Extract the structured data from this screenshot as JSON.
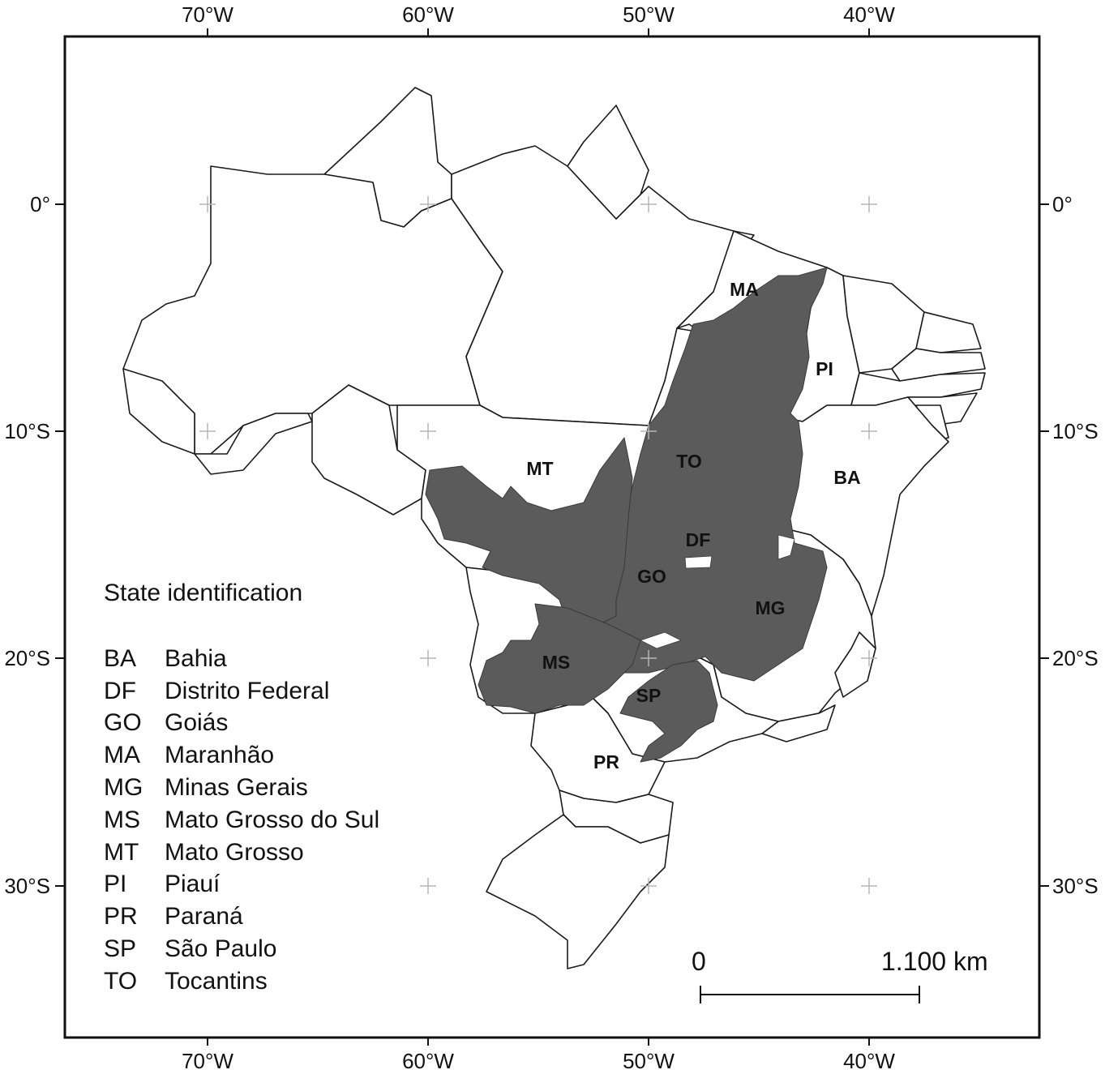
{
  "map": {
    "longitude_labels": [
      "70°W",
      "60°W",
      "50°W",
      "40°W"
    ],
    "latitude_labels": [
      "0°",
      "10°S",
      "20°S",
      "30°S"
    ],
    "state_codes": {
      "ma": "MA",
      "pi": "PI",
      "mt": "MT",
      "to": "TO",
      "ba": "BA",
      "df": "DF",
      "go": "GO",
      "mg": "MG",
      "ms": "MS",
      "sp": "SP",
      "pr": "PR"
    },
    "colors": {
      "highlight_fill": "#5b5b5b",
      "state_fill": "#ffffff",
      "border": "#1a1a1a",
      "graticule": "#b5b5b5"
    }
  },
  "legend": {
    "title": "State identification",
    "items": [
      {
        "code": "BA",
        "name": "Bahia"
      },
      {
        "code": "DF",
        "name": "Distrito Federal"
      },
      {
        "code": "GO",
        "name": "Goiás"
      },
      {
        "code": "MA",
        "name": "Maranhão"
      },
      {
        "code": "MG",
        "name": "Minas Gerais"
      },
      {
        "code": "MS",
        "name": "Mato Grosso do Sul"
      },
      {
        "code": "MT",
        "name": "Mato Grosso"
      },
      {
        "code": "PI",
        "name": "Piauí"
      },
      {
        "code": "PR",
        "name": "Paraná"
      },
      {
        "code": "SP",
        "name": "São Paulo"
      },
      {
        "code": "TO",
        "name": "Tocantins"
      }
    ]
  },
  "scale_bar": {
    "start_label": "0",
    "end_label": "1.100 km"
  }
}
